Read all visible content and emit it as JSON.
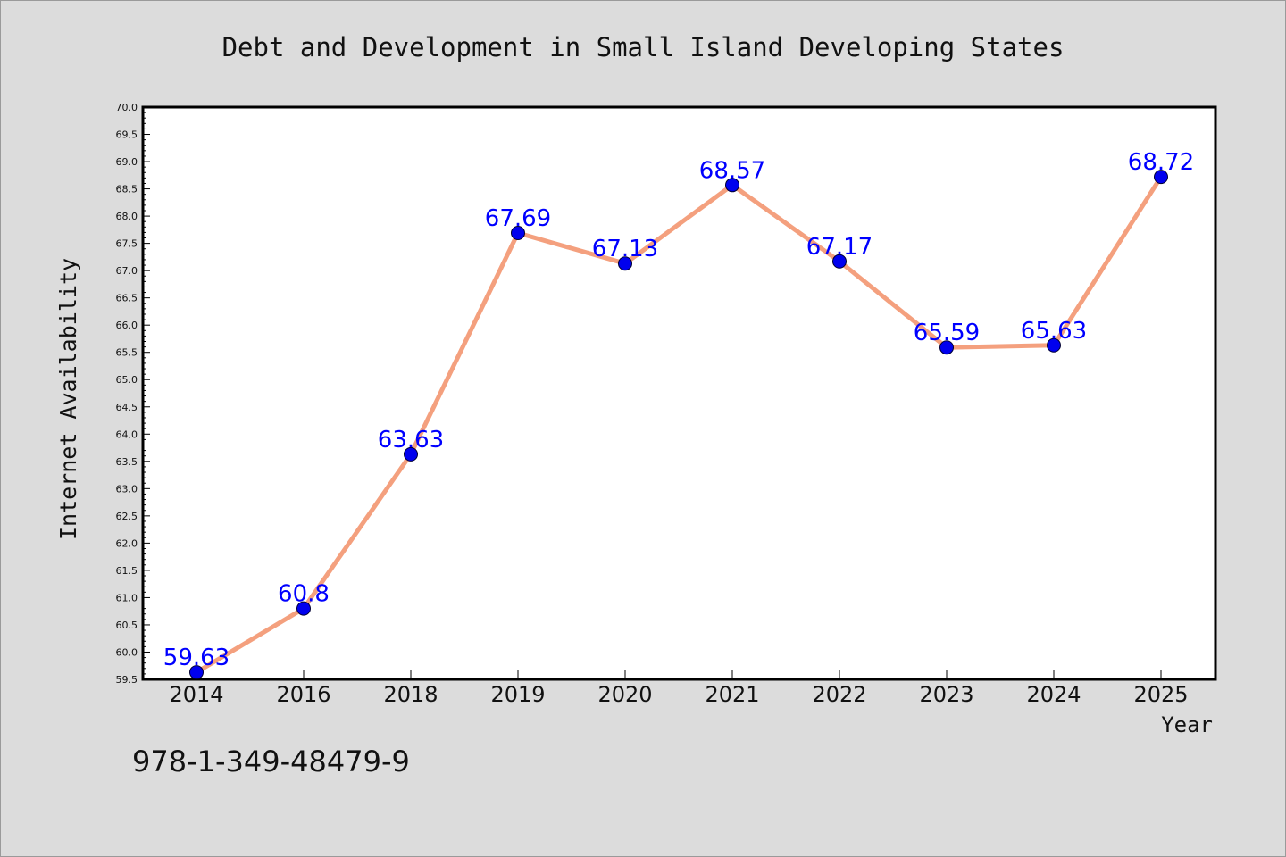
{
  "chart_data": {
    "type": "line",
    "title": "Debt and Development in Small Island Developing States",
    "xlabel": "Year",
    "ylabel": "Internet Availability",
    "categories": [
      "2014",
      "2016",
      "2018",
      "2019",
      "2020",
      "2021",
      "2022",
      "2023",
      "2024",
      "2025"
    ],
    "series": [
      {
        "values": [
          59.63,
          60.8,
          63.63,
          67.69,
          67.13,
          68.57,
          67.17,
          65.59,
          65.63,
          68.72
        ],
        "labels": [
          "59.63",
          "60.8",
          "63.63",
          "67.69",
          "67.13",
          "68.57",
          "67.17",
          "65.59",
          "65.63",
          "68.72"
        ]
      }
    ],
    "ylim": [
      59.5,
      70.0
    ],
    "ytick_step": 0.5,
    "grid": false,
    "line_color": "#f4a07e",
    "marker_color": "#0000ee",
    "label_color": "#0000ff"
  },
  "annotation": "978-1-349-48479-9"
}
